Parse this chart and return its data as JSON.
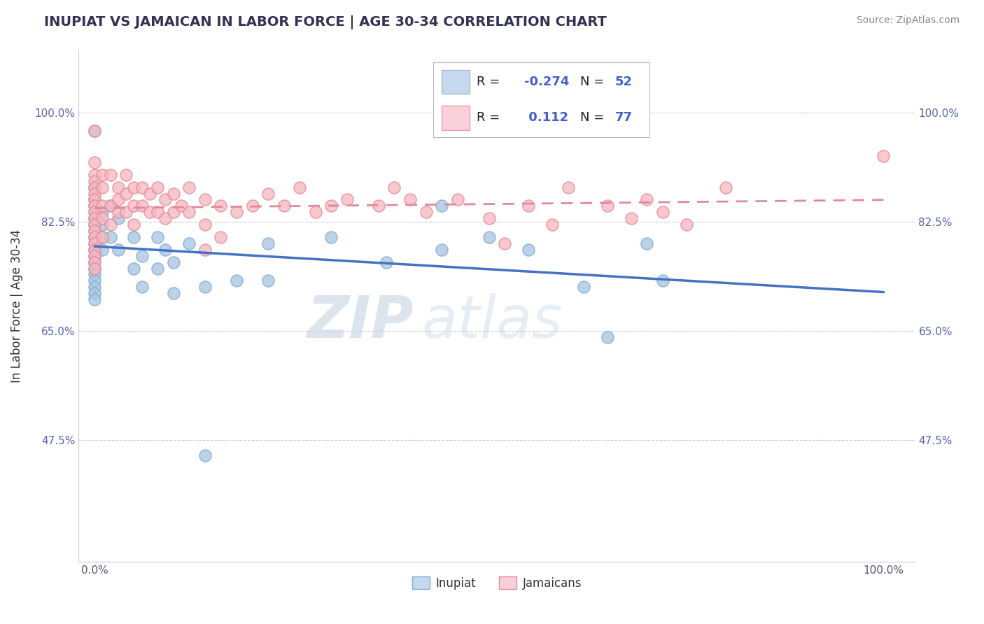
{
  "title": "INUPIAT VS JAMAICAN IN LABOR FORCE | AGE 30-34 CORRELATION CHART",
  "source_text": "Source: ZipAtlas.com",
  "ylabel": "In Labor Force | Age 30-34",
  "xlim": [
    -0.02,
    1.04
  ],
  "ylim": [
    0.28,
    1.1
  ],
  "ytick_labels": [
    "47.5%",
    "65.0%",
    "82.5%",
    "100.0%"
  ],
  "ytick_values": [
    0.475,
    0.65,
    0.825,
    1.0
  ],
  "xtick_labels": [
    "0.0%",
    "100.0%"
  ],
  "xtick_values": [
    0.0,
    1.0
  ],
  "watermark_zip": "ZIP",
  "watermark_atlas": "atlas",
  "inupiat_color": "#a8c4e0",
  "inupiat_edge_color": "#7aaed6",
  "jamaican_color": "#f5b8c0",
  "jamaican_edge_color": "#e88898",
  "inupiat_line_color": "#4472c4",
  "jamaican_line_color": "#e08898",
  "legend_blue_face": "#c5d8f0",
  "legend_pink_face": "#f9d0d8",
  "inupiat_scatter": [
    [
      0.0,
      0.97
    ],
    [
      0.0,
      0.88
    ],
    [
      0.0,
      0.86
    ],
    [
      0.0,
      0.85
    ],
    [
      0.0,
      0.84
    ],
    [
      0.0,
      0.83
    ],
    [
      0.0,
      0.82
    ],
    [
      0.0,
      0.81
    ],
    [
      0.0,
      0.8
    ],
    [
      0.0,
      0.79
    ],
    [
      0.0,
      0.78
    ],
    [
      0.0,
      0.77
    ],
    [
      0.0,
      0.76
    ],
    [
      0.0,
      0.75
    ],
    [
      0.0,
      0.74
    ],
    [
      0.0,
      0.73
    ],
    [
      0.0,
      0.72
    ],
    [
      0.0,
      0.71
    ],
    [
      0.0,
      0.7
    ],
    [
      0.01,
      0.84
    ],
    [
      0.01,
      0.82
    ],
    [
      0.01,
      0.8
    ],
    [
      0.01,
      0.78
    ],
    [
      0.02,
      0.85
    ],
    [
      0.02,
      0.8
    ],
    [
      0.03,
      0.83
    ],
    [
      0.03,
      0.78
    ],
    [
      0.05,
      0.8
    ],
    [
      0.05,
      0.75
    ],
    [
      0.06,
      0.77
    ],
    [
      0.06,
      0.72
    ],
    [
      0.08,
      0.8
    ],
    [
      0.08,
      0.75
    ],
    [
      0.09,
      0.78
    ],
    [
      0.1,
      0.76
    ],
    [
      0.1,
      0.71
    ],
    [
      0.12,
      0.79
    ],
    [
      0.14,
      0.72
    ],
    [
      0.14,
      0.45
    ],
    [
      0.18,
      0.73
    ],
    [
      0.22,
      0.79
    ],
    [
      0.22,
      0.73
    ],
    [
      0.3,
      0.8
    ],
    [
      0.37,
      0.76
    ],
    [
      0.44,
      0.85
    ],
    [
      0.44,
      0.78
    ],
    [
      0.5,
      0.8
    ],
    [
      0.55,
      0.78
    ],
    [
      0.62,
      0.72
    ],
    [
      0.65,
      0.64
    ],
    [
      0.7,
      0.79
    ],
    [
      0.72,
      0.73
    ]
  ],
  "jamaican_scatter": [
    [
      0.0,
      0.97
    ],
    [
      0.0,
      0.92
    ],
    [
      0.0,
      0.9
    ],
    [
      0.0,
      0.89
    ],
    [
      0.0,
      0.88
    ],
    [
      0.0,
      0.87
    ],
    [
      0.0,
      0.86
    ],
    [
      0.0,
      0.85
    ],
    [
      0.0,
      0.84
    ],
    [
      0.0,
      0.83
    ],
    [
      0.0,
      0.82
    ],
    [
      0.0,
      0.81
    ],
    [
      0.0,
      0.8
    ],
    [
      0.0,
      0.79
    ],
    [
      0.0,
      0.78
    ],
    [
      0.0,
      0.77
    ],
    [
      0.0,
      0.76
    ],
    [
      0.0,
      0.75
    ],
    [
      0.01,
      0.9
    ],
    [
      0.01,
      0.88
    ],
    [
      0.01,
      0.85
    ],
    [
      0.01,
      0.83
    ],
    [
      0.01,
      0.8
    ],
    [
      0.02,
      0.9
    ],
    [
      0.02,
      0.85
    ],
    [
      0.02,
      0.82
    ],
    [
      0.03,
      0.88
    ],
    [
      0.03,
      0.86
    ],
    [
      0.03,
      0.84
    ],
    [
      0.04,
      0.9
    ],
    [
      0.04,
      0.87
    ],
    [
      0.04,
      0.84
    ],
    [
      0.05,
      0.88
    ],
    [
      0.05,
      0.85
    ],
    [
      0.05,
      0.82
    ],
    [
      0.06,
      0.88
    ],
    [
      0.06,
      0.85
    ],
    [
      0.07,
      0.87
    ],
    [
      0.07,
      0.84
    ],
    [
      0.08,
      0.88
    ],
    [
      0.08,
      0.84
    ],
    [
      0.09,
      0.86
    ],
    [
      0.09,
      0.83
    ],
    [
      0.1,
      0.87
    ],
    [
      0.1,
      0.84
    ],
    [
      0.11,
      0.85
    ],
    [
      0.12,
      0.88
    ],
    [
      0.12,
      0.84
    ],
    [
      0.14,
      0.86
    ],
    [
      0.14,
      0.82
    ],
    [
      0.14,
      0.78
    ],
    [
      0.16,
      0.85
    ],
    [
      0.16,
      0.8
    ],
    [
      0.18,
      0.84
    ],
    [
      0.2,
      0.85
    ],
    [
      0.22,
      0.87
    ],
    [
      0.24,
      0.85
    ],
    [
      0.26,
      0.88
    ],
    [
      0.28,
      0.84
    ],
    [
      0.3,
      0.85
    ],
    [
      0.32,
      0.86
    ],
    [
      0.36,
      0.85
    ],
    [
      0.38,
      0.88
    ],
    [
      0.4,
      0.86
    ],
    [
      0.42,
      0.84
    ],
    [
      0.46,
      0.86
    ],
    [
      0.5,
      0.83
    ],
    [
      0.52,
      0.79
    ],
    [
      0.55,
      0.85
    ],
    [
      0.58,
      0.82
    ],
    [
      0.6,
      0.88
    ],
    [
      0.65,
      0.85
    ],
    [
      0.68,
      0.83
    ],
    [
      0.7,
      0.86
    ],
    [
      0.72,
      0.84
    ],
    [
      0.75,
      0.82
    ],
    [
      0.8,
      0.88
    ],
    [
      1.0,
      0.93
    ]
  ]
}
